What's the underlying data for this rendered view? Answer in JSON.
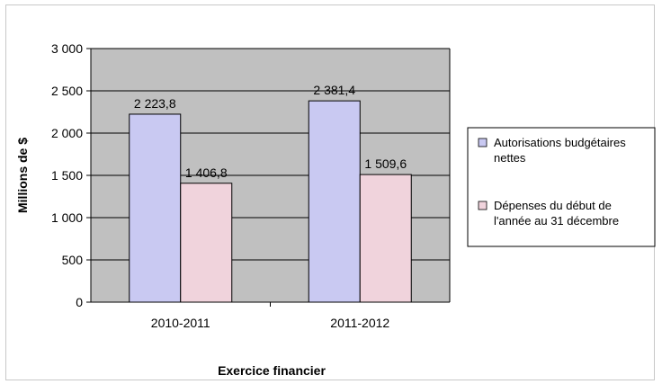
{
  "chart_data": {
    "type": "bar",
    "categories": [
      "2010-2011",
      "2011-2012"
    ],
    "series": [
      {
        "name": "Autorisations budgétaires nettes",
        "values": [
          2223.8,
          2381.4
        ],
        "labels": [
          "2 223,8",
          "2 381,4"
        ],
        "color": "#c9c9f2"
      },
      {
        "name": "Dépenses du début de l'année au 31 décembre",
        "values": [
          1406.8,
          1509.6
        ],
        "labels": [
          "1 406,8",
          "1 509,6"
        ],
        "color": "#f0d3dc"
      }
    ],
    "legend_lines": [
      [
        "Autorisations budgétaires",
        "nettes"
      ],
      [
        "Dépenses du début de",
        "l'année au 31 décembre"
      ]
    ],
    "ylim": [
      0,
      3000
    ],
    "yticks": [
      0,
      500,
      1000,
      1500,
      2000,
      2500,
      3000
    ],
    "ytick_labels": [
      "0",
      "500",
      "1 000",
      "1 500",
      "2 000",
      "2 500",
      "3 000"
    ],
    "xlabel": "Exercice financier",
    "ylabel": "Millions de $",
    "grid": true,
    "legend_position": "right",
    "plot_background": "#c0c0c0"
  }
}
